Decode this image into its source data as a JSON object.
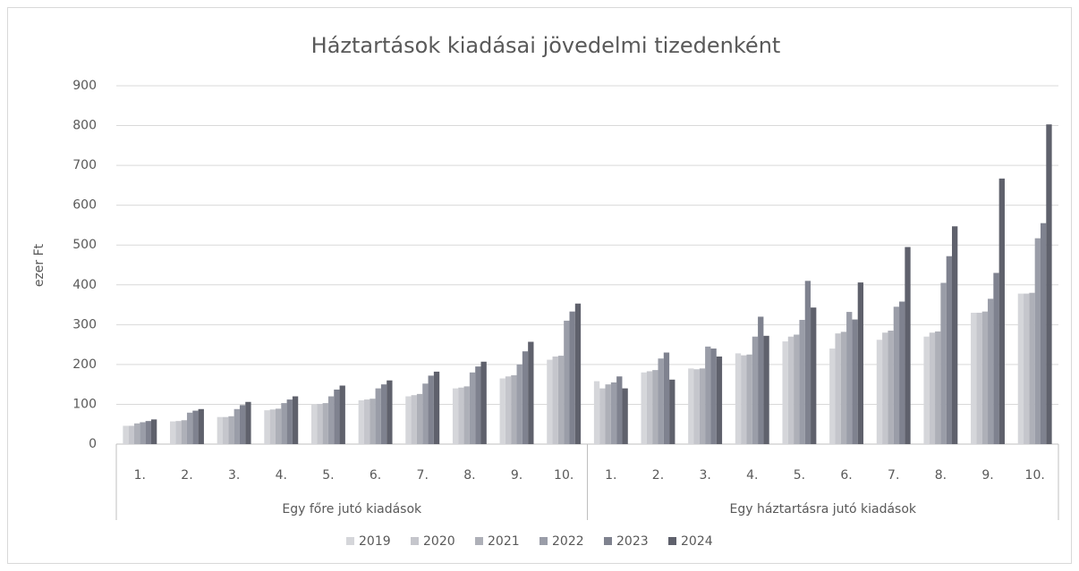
{
  "chart_data": {
    "type": "bar",
    "title": "Háztartások kiadásai jövedelmi tizedenként",
    "ylabel": "ezer Ft",
    "groups": [
      "Egy főre jutó kiadások",
      "Egy háztartásra jutó kiadások"
    ],
    "categories": [
      "1.",
      "2.",
      "3.",
      "4.",
      "5.",
      "6.",
      "7.",
      "8.",
      "9.",
      "10.",
      "1.",
      "2.",
      "3.",
      "4.",
      "5.",
      "6.",
      "7.",
      "8.",
      "9.",
      "10."
    ],
    "series": [
      {
        "name": "2019",
        "color": "#d5d6da",
        "values": [
          46,
          57,
          68,
          85,
          100,
          110,
          120,
          140,
          165,
          212,
          158,
          180,
          190,
          228,
          258,
          240,
          262,
          270,
          330,
          378
        ]
      },
      {
        "name": "2020",
        "color": "#c5c6cc",
        "values": [
          46,
          58,
          68,
          87,
          101,
          112,
          123,
          142,
          170,
          220,
          140,
          183,
          188,
          223,
          270,
          278,
          280,
          280,
          330,
          378
        ]
      },
      {
        "name": "2021",
        "color": "#aeb0b8",
        "values": [
          52,
          60,
          70,
          89,
          103,
          114,
          126,
          145,
          173,
          222,
          150,
          186,
          190,
          225,
          275,
          282,
          285,
          283,
          333,
          380
        ]
      },
      {
        "name": "2022",
        "color": "#9a9da8",
        "values": [
          55,
          79,
          88,
          103,
          120,
          140,
          152,
          180,
          200,
          310,
          155,
          215,
          245,
          270,
          312,
          332,
          345,
          405,
          365,
          517
        ]
      },
      {
        "name": "2023",
        "color": "#7f828f",
        "values": [
          58,
          84,
          98,
          112,
          137,
          150,
          172,
          195,
          233,
          333,
          170,
          230,
          240,
          320,
          410,
          313,
          358,
          472,
          430,
          555
        ]
      },
      {
        "name": "2024",
        "color": "#5f616c",
        "values": [
          62,
          88,
          106,
          120,
          147,
          160,
          182,
          207,
          257,
          353,
          140,
          162,
          220,
          272,
          343,
          406,
          495,
          547,
          667,
          803
        ]
      }
    ],
    "ylim": [
      0,
      900
    ],
    "yticks": [
      0,
      100,
      200,
      300,
      400,
      500,
      600,
      700,
      800,
      900
    ],
    "grid": true,
    "legend": "bottom"
  }
}
